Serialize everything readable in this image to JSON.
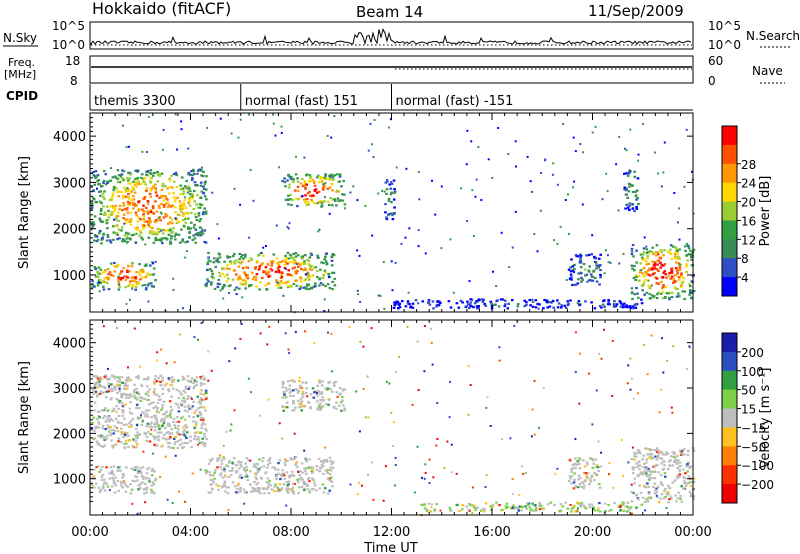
{
  "header": {
    "station": "Hokkaido (fitACF)",
    "beam": "Beam 14",
    "date": "11/Sep/2009"
  },
  "strip_labels": {
    "nsky": "N.Sky",
    "nsearch": "N.Search",
    "freq_line1": "Freq.",
    "freq_line2": "[MHz]",
    "nave": "Nave",
    "cpid": "CPID",
    "nsky_ticks": [
      "10^5",
      "10^0"
    ],
    "nsearch_ticks": [
      "10^5",
      "10^0"
    ],
    "freq_ticks": [
      "18",
      "8"
    ],
    "nave_ticks": [
      "60",
      "0"
    ]
  },
  "cpid_segments": [
    {
      "label": "themis 3300",
      "start_hour": 0,
      "end_hour": 6
    },
    {
      "label": "normal (fast) 151",
      "start_hour": 6,
      "end_hour": 12
    },
    {
      "label": "normal (fast) -151",
      "start_hour": 12,
      "end_hour": 24
    }
  ],
  "colors": {
    "power": [
      "#0000ff",
      "#2e4ec4",
      "#3a8a5a",
      "#30a040",
      "#9acd32",
      "#ffd700",
      "#ff9800",
      "#ff5000",
      "#ff0000"
    ],
    "velocity": [
      "#1c1caa",
      "#2a50c0",
      "#30a040",
      "#7fd14a",
      "#bebebe",
      "#ffc020",
      "#ff8000",
      "#ff3000",
      "#ee0000"
    ]
  },
  "chart_data": [
    {
      "type": "heatmap",
      "name": "power",
      "ylabel": "Slant Range [km]",
      "y_ticks": [
        1000,
        2000,
        3000,
        4000
      ],
      "ylim": [
        200,
        4500
      ],
      "xlim": [
        0,
        24
      ],
      "colorbar_label": "Power [dB]",
      "colorbar_ticks": [
        4,
        8,
        12,
        16,
        20,
        24,
        28
      ],
      "regions": [
        {
          "hours": [
            0,
            4.6
          ],
          "range": [
            1700,
            3300
          ],
          "level": 0.75
        },
        {
          "hours": [
            0,
            2.6
          ],
          "range": [
            700,
            1300
          ],
          "level": 0.8
        },
        {
          "hours": [
            4.5,
            9.7
          ],
          "range": [
            700,
            1500
          ],
          "level": 0.8
        },
        {
          "hours": [
            7.6,
            10.1
          ],
          "range": [
            2500,
            3200
          ],
          "level": 0.85
        },
        {
          "hours": [
            11.7,
            12.1
          ],
          "range": [
            2200,
            3100
          ],
          "level": 0.3
        },
        {
          "hours": [
            19.0,
            20.3
          ],
          "range": [
            800,
            1500
          ],
          "level": 0.3
        },
        {
          "hours": [
            21.2,
            21.8
          ],
          "range": [
            2400,
            3300
          ],
          "level": 0.35
        },
        {
          "hours": [
            21.5,
            24
          ],
          "range": [
            500,
            1700
          ],
          "level": 0.85
        },
        {
          "hours": [
            12.0,
            22.0
          ],
          "range": [
            300,
            500
          ],
          "level": 0.15
        }
      ]
    },
    {
      "type": "heatmap",
      "name": "velocity",
      "ylabel": "Slant Range [km]",
      "y_ticks": [
        1000,
        2000,
        3000,
        4000
      ],
      "ylim": [
        200,
        4500
      ],
      "xlim": [
        0,
        24
      ],
      "xlabel": "Time UT",
      "x_ticks": [
        "00:00",
        "04:00",
        "08:00",
        "12:00",
        "16:00",
        "20:00",
        "00:00"
      ],
      "colorbar_label": "Velocity [m s⁻¹]",
      "colorbar_ticks": [
        200,
        100,
        50,
        15,
        -15,
        -50,
        -100,
        -200
      ],
      "regions": [
        {
          "hours": [
            0,
            4.6
          ],
          "range": [
            1700,
            3300
          ],
          "level": 0.5
        },
        {
          "hours": [
            0,
            2.6
          ],
          "range": [
            700,
            1300
          ],
          "level": 0.5
        },
        {
          "hours": [
            4.5,
            9.7
          ],
          "range": [
            700,
            1500
          ],
          "level": 0.5
        },
        {
          "hours": [
            7.6,
            10.1
          ],
          "range": [
            2500,
            3200
          ],
          "level": 0.5
        },
        {
          "hours": [
            19.0,
            20.3
          ],
          "range": [
            800,
            1500
          ],
          "level": 0.5
        },
        {
          "hours": [
            21.5,
            24
          ],
          "range": [
            500,
            1700
          ],
          "level": 0.5
        },
        {
          "hours": [
            13.0,
            22.0
          ],
          "range": [
            300,
            500
          ],
          "level": 0.3
        }
      ]
    }
  ]
}
